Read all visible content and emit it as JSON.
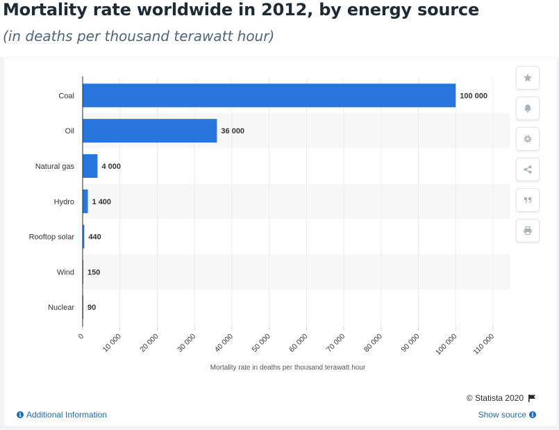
{
  "header": {
    "title": "Mortality rate worldwide in 2012, by energy source",
    "subtitle": "(in deaths per thousand terawatt hour)"
  },
  "toolbar": {
    "buttons": [
      {
        "icon": "star-icon",
        "name": "favorite-button"
      },
      {
        "icon": "bell-icon",
        "name": "notification-button"
      },
      {
        "icon": "gear-icon",
        "name": "settings-button"
      },
      {
        "icon": "share-icon",
        "name": "share-button"
      },
      {
        "icon": "quote-icon",
        "name": "cite-button"
      },
      {
        "icon": "print-icon",
        "name": "print-button"
      }
    ]
  },
  "footer": {
    "credit": "© Statista 2020",
    "additional_info": "Additional Information",
    "show_source": "Show source"
  },
  "colors": {
    "bar": "#2876dd",
    "band": "#f7f7f7",
    "axis": "#1e2a36",
    "label": "#333333",
    "link": "#1f6bb5"
  },
  "chart_data": {
    "type": "bar",
    "orientation": "horizontal",
    "categories": [
      "Coal",
      "Oil",
      "Natural gas",
      "Hydro",
      "Rooftop solar",
      "Wind",
      "Nuclear"
    ],
    "values": [
      100000,
      36000,
      4000,
      1400,
      440,
      150,
      90
    ],
    "value_labels": [
      "100 000",
      "36 000",
      "4 000",
      "1 400",
      "440",
      "150",
      "90"
    ],
    "xlabel": "Mortality rate in deaths per thousand terawatt hour",
    "xlim": [
      0,
      110000
    ],
    "xticks": [
      0,
      10000,
      20000,
      30000,
      40000,
      50000,
      60000,
      70000,
      80000,
      90000,
      100000,
      110000
    ],
    "xtick_labels": [
      "0",
      "10 000",
      "20 000",
      "30 000",
      "40 000",
      "50 000",
      "60 000",
      "70 000",
      "80 000",
      "90 000",
      "100 000",
      "110 000"
    ],
    "grid": "vertical"
  }
}
